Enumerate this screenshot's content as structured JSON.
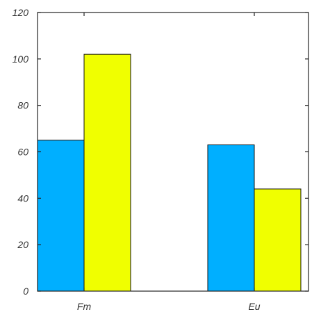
{
  "chart_data": {
    "type": "bar",
    "categories": [
      "Fm",
      "Eu"
    ],
    "series": [
      {
        "values": [
          65,
          63
        ],
        "color": "#00AFFF"
      },
      {
        "values": [
          102,
          44
        ],
        "color": "#F0FF00"
      }
    ],
    "yticks": [
      "0",
      "20",
      "40",
      "60",
      "80",
      "100",
      "120"
    ],
    "ylim": [
      0,
      120
    ],
    "title": "",
    "xlabel": "",
    "ylabel": "",
    "grid": false,
    "legend": "none"
  }
}
